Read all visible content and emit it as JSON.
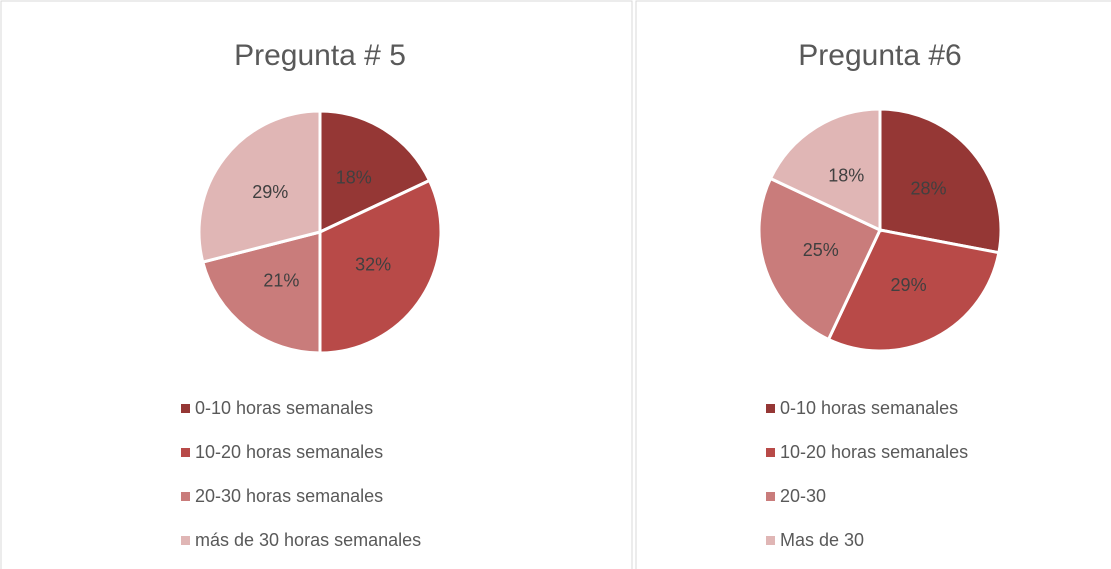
{
  "chart_data": [
    {
      "type": "pie",
      "title": "Pregunta # 5",
      "categories": [
        "0-10 horas semanales",
        "10-20 horas semanales",
        "20-30 horas semanales",
        "más de 30 horas semanales"
      ],
      "values": [
        18,
        32,
        21,
        29
      ],
      "value_labels": [
        "18%",
        "32%",
        "21%",
        "29%"
      ],
      "colors": [
        "#953735",
        "#b84a48",
        "#c97c7b",
        "#e0b6b5"
      ],
      "legend": "bottom"
    },
    {
      "type": "pie",
      "title": "Pregunta #6",
      "categories": [
        "0-10 horas semanales",
        "10-20 horas semanales",
        "20-30",
        "Mas de 30"
      ],
      "values": [
        28,
        29,
        25,
        18
      ],
      "value_labels": [
        "28%",
        "29%",
        "25%",
        "18%"
      ],
      "colors": [
        "#953735",
        "#b84a48",
        "#c97c7b",
        "#e0b6b5"
      ],
      "legend": "bottom"
    }
  ]
}
